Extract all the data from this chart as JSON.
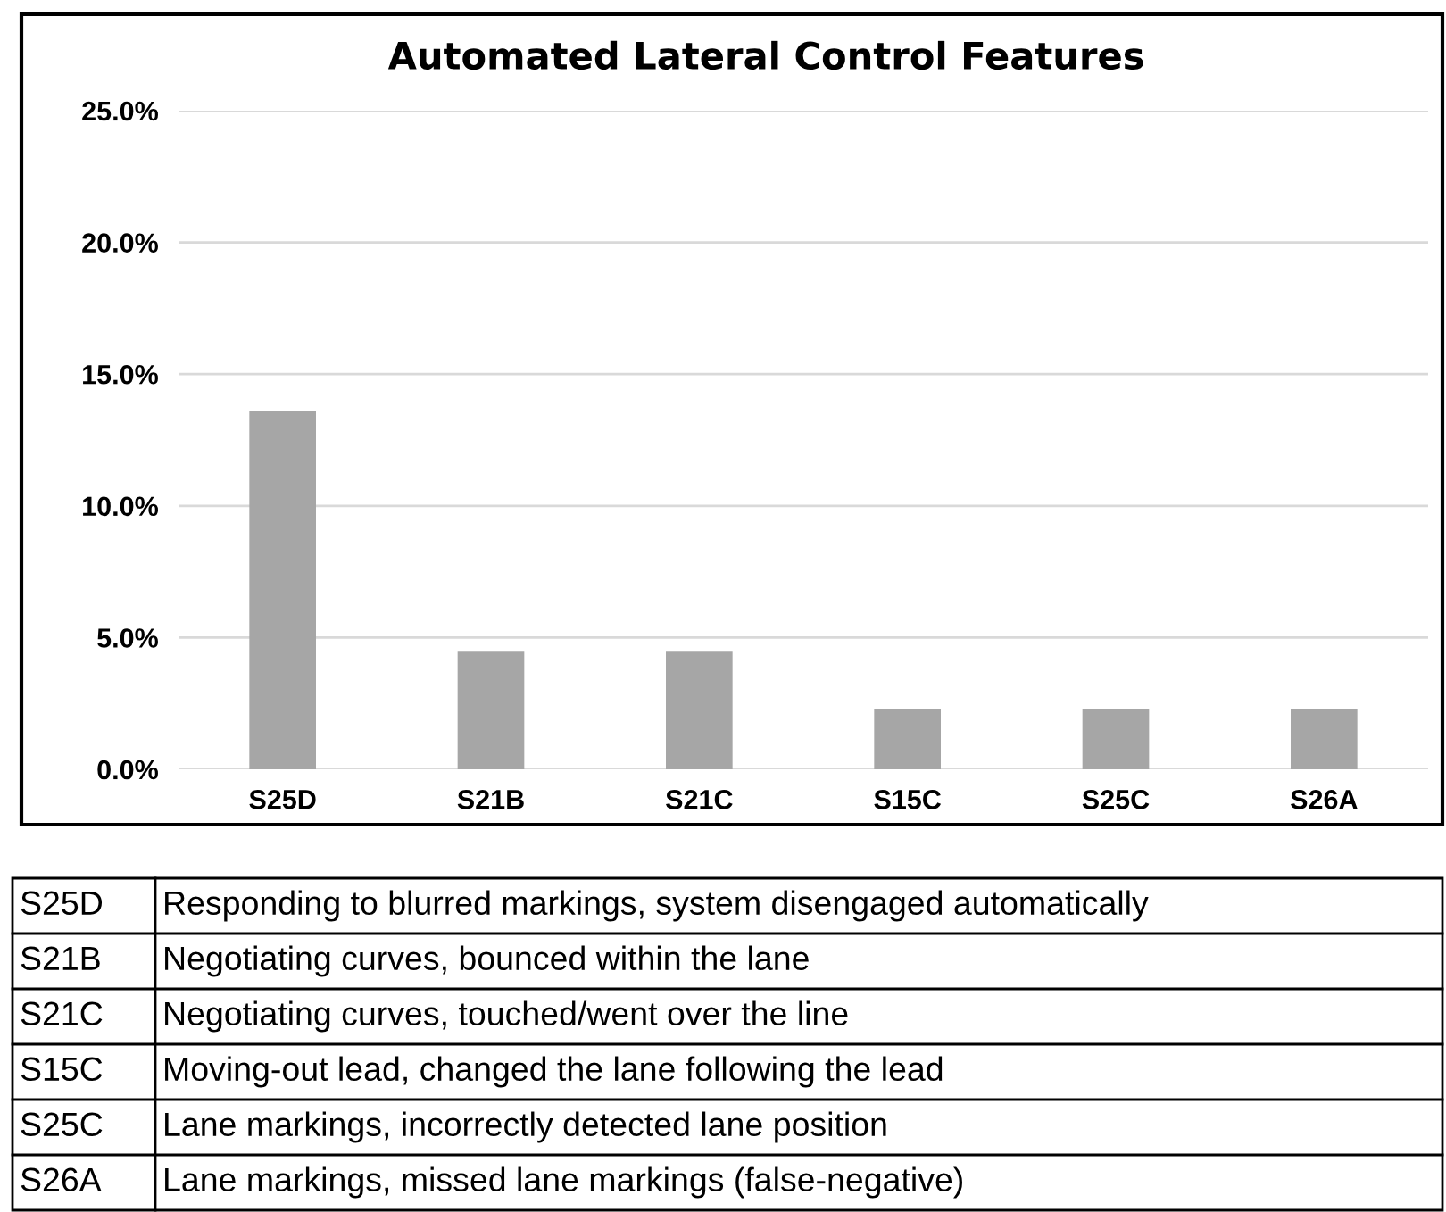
{
  "chart_data": {
    "type": "bar",
    "title": "Automated Lateral Control Features",
    "categories": [
      "S25D",
      "S21B",
      "S21C",
      "S15C",
      "S25C",
      "S26A"
    ],
    "values": [
      13.6,
      4.5,
      4.5,
      2.3,
      2.3,
      2.3
    ],
    "color": "#a6a6a6",
    "ylim": [
      0,
      25
    ],
    "yticks": [
      {
        "value": 0,
        "label": "0.0%"
      },
      {
        "value": 5,
        "label": "5.0%"
      },
      {
        "value": 10,
        "label": "10.0%"
      },
      {
        "value": 15,
        "label": "15.0%"
      },
      {
        "value": 20,
        "label": "20.0%"
      },
      {
        "value": 25,
        "label": "25.0%"
      }
    ],
    "grid": "y",
    "annotations": [
      "S25D",
      "Responding to blurred markings, system disengaged automatically",
      "S21B",
      "Negotiating curves, bounced within the lane",
      "S21C",
      "Negotiating curves, touched/went over the line",
      "S15C",
      "Moving-out lead, changed the lane following the lead",
      "S25C",
      "Lane markings, incorrectly detected lane position",
      "S26A",
      "Lane markings, missed lane markings (false-negative)"
    ]
  }
}
